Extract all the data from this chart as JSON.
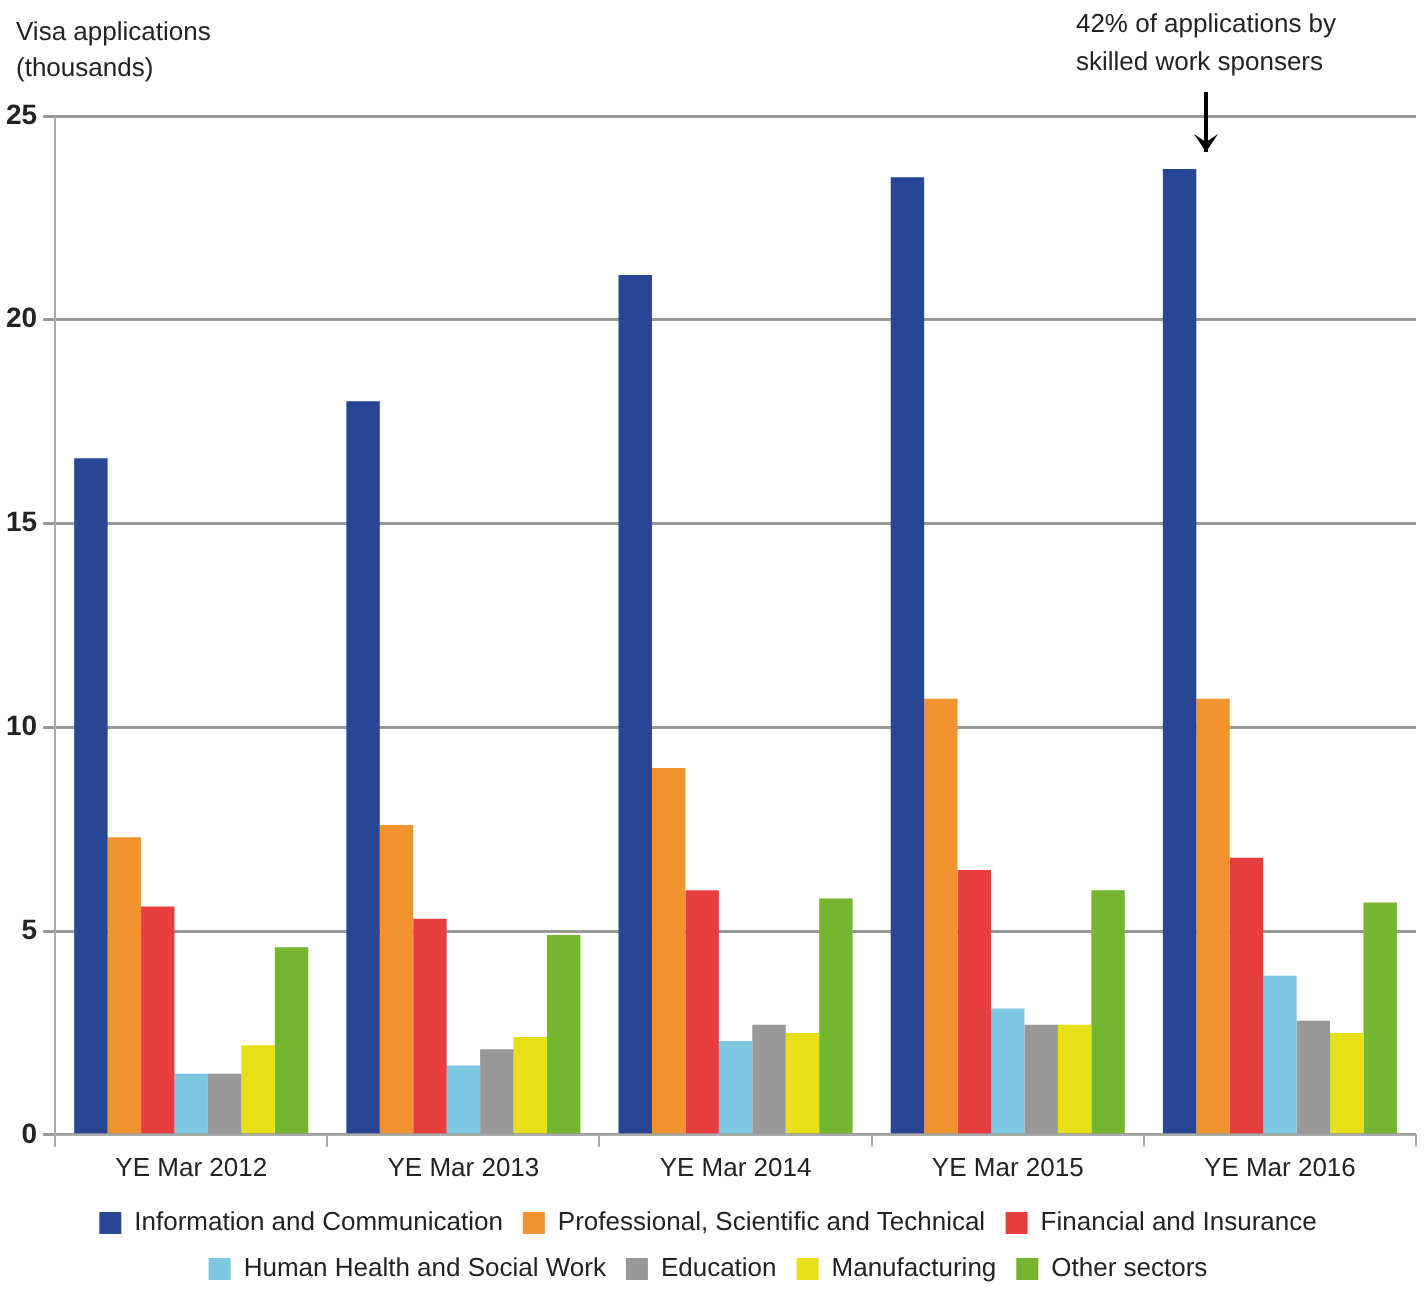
{
  "chart_data": {
    "type": "bar",
    "ylabel": "Visa applications (thousands)",
    "categories": [
      "YE Mar 2012",
      "YE Mar 2013",
      "YE Mar 2014",
      "YE Mar 2015",
      "YE Mar 2016"
    ],
    "series": [
      {
        "name": "Information and Communication",
        "color": "#274694",
        "values": [
          16.6,
          18.0,
          21.1,
          23.5,
          23.7
        ]
      },
      {
        "name": "Professional, Scientific and Technical",
        "color": "#f39330",
        "values": [
          7.3,
          7.6,
          9.0,
          10.7,
          10.7
        ]
      },
      {
        "name": "Financial and Insurance",
        "color": "#e63e3f",
        "values": [
          5.6,
          5.3,
          6.0,
          6.5,
          6.8
        ]
      },
      {
        "name": "Human Health and Social Work",
        "color": "#7ec7e1",
        "values": [
          1.5,
          1.7,
          2.3,
          3.1,
          3.9
        ]
      },
      {
        "name": "Education",
        "color": "#989898",
        "values": [
          1.5,
          2.1,
          2.7,
          2.7,
          2.8
        ]
      },
      {
        "name": "Manufacturing",
        "color": "#e8e017",
        "values": [
          2.2,
          2.4,
          2.5,
          2.7,
          2.5
        ]
      },
      {
        "name": "Other sectors",
        "color": "#76b52f",
        "values": [
          4.6,
          4.9,
          5.8,
          6.0,
          5.7
        ]
      }
    ],
    "ylim": [
      0,
      25
    ],
    "yticks": [
      0,
      5,
      10,
      15,
      20,
      25
    ],
    "grid": "y",
    "legend": "bottom",
    "annotations": [
      "42% of applications by skilled work sponsers"
    ]
  }
}
